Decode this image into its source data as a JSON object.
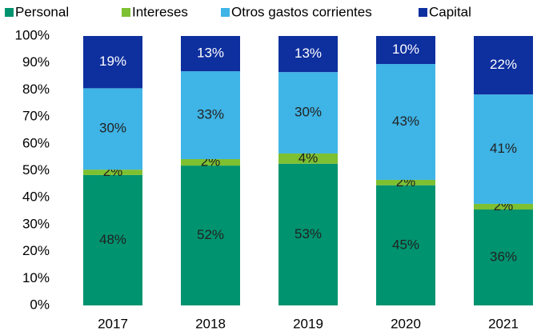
{
  "chart_data": {
    "type": "stacked_bar",
    "categories": [
      "2017",
      "2018",
      "2019",
      "2020",
      "2021"
    ],
    "series": [
      {
        "name": "Personal",
        "color": "#00936f",
        "values": [
          48.4,
          51.9,
          52.6,
          44.6,
          35.6
        ],
        "value_labels": [
          "48%",
          "52%",
          "53%",
          "45%",
          "36%"
        ]
      },
      {
        "name": "Intereses",
        "color": "#7dc031",
        "values": [
          2.0,
          2.4,
          3.8,
          2.0,
          2.1
        ],
        "value_labels": [
          "2%",
          "2%",
          "4%",
          "2%",
          "2%"
        ]
      },
      {
        "name": "Otros gastos corrientes",
        "color": "#3fb4e6",
        "values": [
          30.2,
          32.6,
          30.2,
          43.0,
          40.6
        ],
        "value_labels": [
          "30%",
          "33%",
          "30%",
          "43%",
          "41%"
        ]
      },
      {
        "name": "Capital",
        "color": "#0e2f9e",
        "values": [
          19.4,
          13.1,
          13.4,
          10.4,
          21.7
        ],
        "value_labels": [
          "19%",
          "13%",
          "13%",
          "10%",
          "22%"
        ]
      }
    ],
    "ylim": [
      0,
      100
    ],
    "yticks": [
      {
        "value": 0,
        "label": "0%"
      },
      {
        "value": 10,
        "label": "10%"
      },
      {
        "value": 20,
        "label": "20%"
      },
      {
        "value": 30,
        "label": "30%"
      },
      {
        "value": 40,
        "label": "40%"
      },
      {
        "value": 50,
        "label": "50%"
      },
      {
        "value": 60,
        "label": "60%"
      },
      {
        "value": 70,
        "label": "70%"
      },
      {
        "value": 80,
        "label": "80%"
      },
      {
        "value": 90,
        "label": "90%"
      },
      {
        "value": 100,
        "label": "100%"
      }
    ],
    "grid": false,
    "legend": "top"
  }
}
